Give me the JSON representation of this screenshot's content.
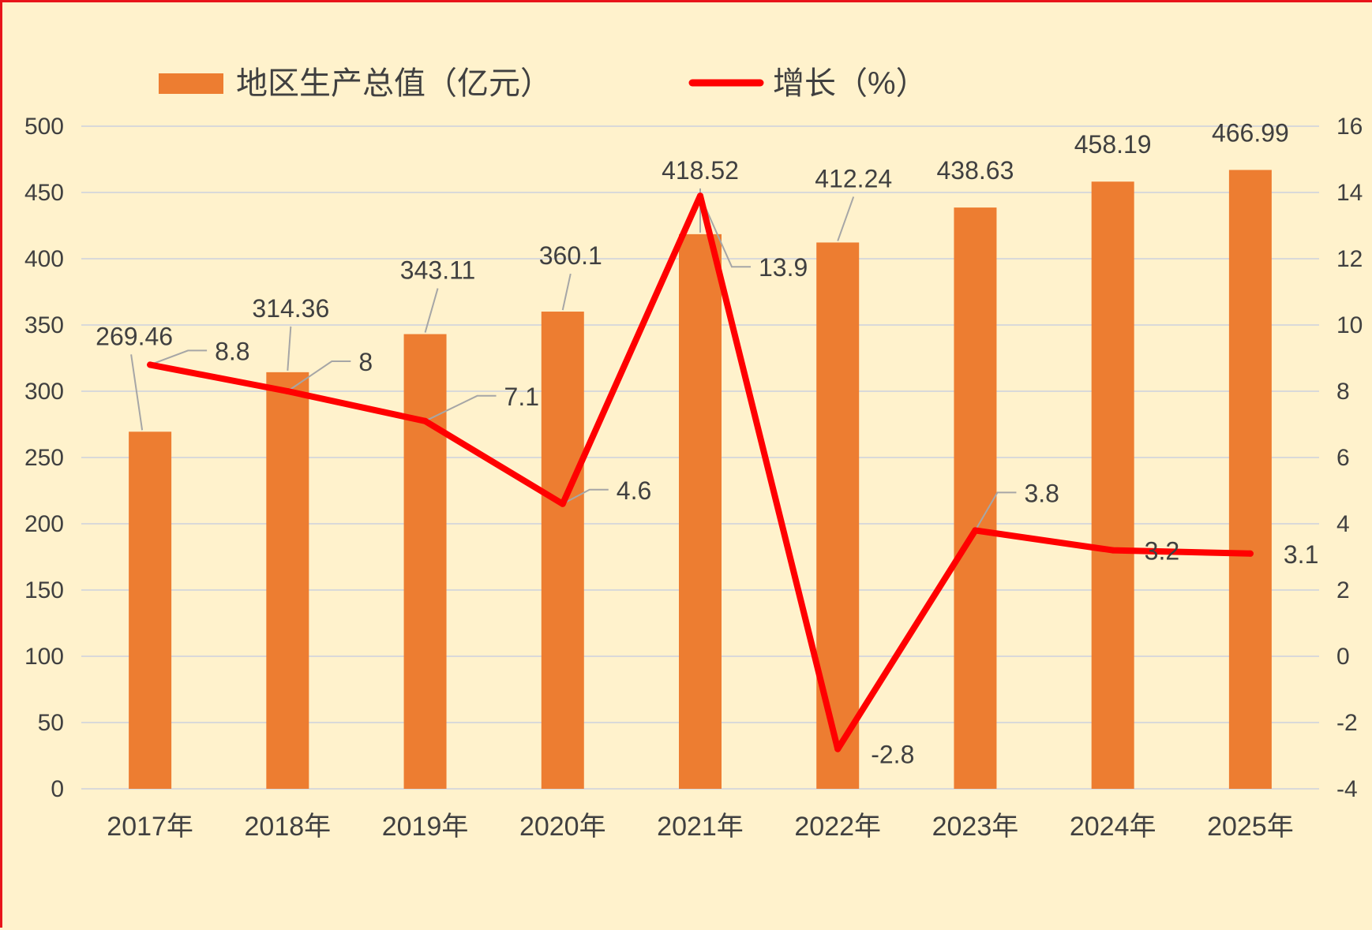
{
  "colors": {
    "background": "#FFF2CC",
    "border": "#E8141A",
    "bar": "#ED7D31",
    "line": "#FF0000",
    "grid": "#D9D9D9",
    "text": "#404040"
  },
  "legend": {
    "bar_label": "地区生产总值（亿元）",
    "line_label": "增长（%）"
  },
  "chart_data": {
    "type": "bar",
    "categories": [
      "2017年",
      "2018年",
      "2019年",
      "2020年",
      "2021年",
      "2022年",
      "2023年",
      "2024年",
      "2025年"
    ],
    "series": [
      {
        "name": "地区生产总值（亿元）",
        "type": "bar",
        "axis": "left",
        "values": [
          269.46,
          314.36,
          343.11,
          360.1,
          418.52,
          412.24,
          438.63,
          458.19,
          466.99
        ],
        "labels": [
          "269.46",
          "314.36",
          "343.11",
          "360.1",
          "418.52",
          "412.24",
          "438.63",
          "458.19",
          "466.99"
        ]
      },
      {
        "name": "增长（%）",
        "type": "line",
        "axis": "right",
        "values": [
          8.8,
          8,
          7.1,
          4.6,
          13.9,
          -2.8,
          3.8,
          3.2,
          3.1
        ],
        "labels": [
          "8.8",
          "8",
          "7.1",
          "4.6",
          "13.9",
          "-2.8",
          "3.8",
          "3.2",
          "3.1"
        ]
      }
    ],
    "y_left": {
      "ylim": [
        0,
        500
      ],
      "ticks": [
        "0",
        "50",
        "100",
        "150",
        "200",
        "250",
        "300",
        "350",
        "400",
        "450",
        "500"
      ]
    },
    "y_right": {
      "ylim": [
        -4,
        16
      ],
      "ticks": [
        "-4",
        "-2",
        "0",
        "2",
        "4",
        "6",
        "8",
        "10",
        "12",
        "14",
        "16"
      ]
    },
    "grid": true,
    "legend_position": "top"
  }
}
